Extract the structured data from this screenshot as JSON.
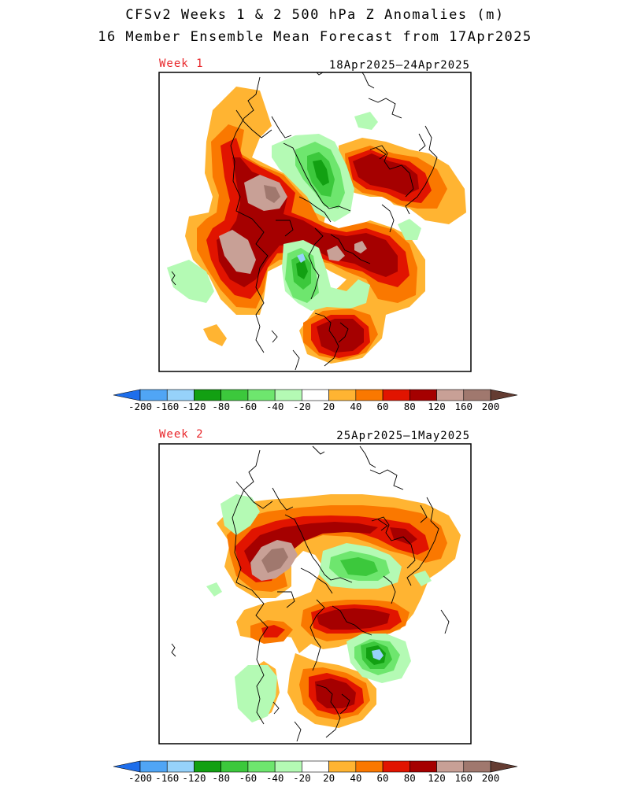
{
  "title_line1": "CFSv2 Weeks 1 & 2 500 hPa Z Anomalies (m)",
  "title_line2": "16 Member Ensemble Mean Forecast from 17Apr2025",
  "panels": [
    {
      "label": "Week 1",
      "dates": "18Apr2025—24Apr2025"
    },
    {
      "label": "Week 2",
      "dates": "25Apr2025—1May2025"
    }
  ],
  "colorbar": {
    "labels": [
      "-200",
      "-160",
      "-120",
      "-80",
      "-60",
      "-40",
      "-20",
      "20",
      "40",
      "60",
      "80",
      "120",
      "160",
      "200"
    ],
    "colors": [
      "#1e6eeb",
      "#50a5f5",
      "#96d2fa",
      "#12a012",
      "#3cc83c",
      "#6ee66e",
      "#b4fab4",
      "#ffffff",
      "#ffb432",
      "#fa7800",
      "#e11400",
      "#a50000",
      "#c8a096",
      "#a0786e",
      "#643c32"
    ]
  }
}
